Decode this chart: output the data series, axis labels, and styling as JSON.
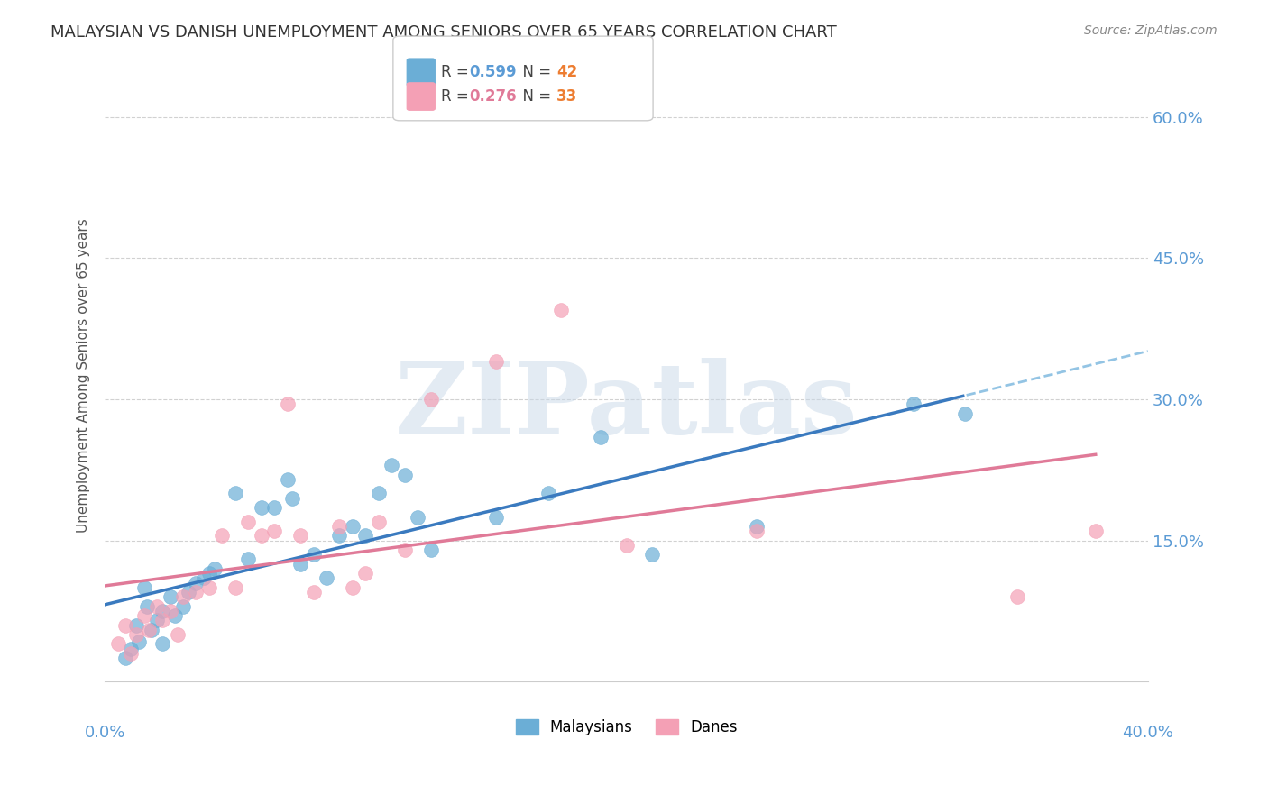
{
  "title": "MALAYSIAN VS DANISH UNEMPLOYMENT AMONG SENIORS OVER 65 YEARS CORRELATION CHART",
  "source": "Source: ZipAtlas.com",
  "ylabel": "Unemployment Among Seniors over 65 years",
  "yticks": [
    0.0,
    0.15,
    0.3,
    0.45,
    0.6
  ],
  "ytick_labels": [
    "",
    "15.0%",
    "30.0%",
    "45.0%",
    "60.0%"
  ],
  "xticks": [
    0.0,
    0.1,
    0.2,
    0.3,
    0.4
  ],
  "xlim": [
    0.0,
    0.4
  ],
  "ylim": [
    0.0,
    0.65
  ],
  "watermark_text": "ZIPatlas",
  "malaysian_color": "#6baed6",
  "danish_color": "#f4a0b5",
  "blue_line_color": "#3a7abf",
  "pink_line_color": "#e07a98",
  "blue_dash_color": "#93c4e4",
  "malaysian_x": [
    0.008,
    0.01,
    0.012,
    0.013,
    0.015,
    0.016,
    0.018,
    0.02,
    0.022,
    0.022,
    0.025,
    0.027,
    0.03,
    0.032,
    0.035,
    0.038,
    0.04,
    0.042,
    0.05,
    0.055,
    0.06,
    0.065,
    0.07,
    0.072,
    0.075,
    0.08,
    0.085,
    0.09,
    0.095,
    0.1,
    0.105,
    0.11,
    0.115,
    0.12,
    0.125,
    0.15,
    0.17,
    0.19,
    0.21,
    0.25,
    0.31,
    0.33
  ],
  "malaysian_y": [
    0.025,
    0.035,
    0.06,
    0.042,
    0.1,
    0.08,
    0.055,
    0.065,
    0.04,
    0.075,
    0.09,
    0.07,
    0.08,
    0.095,
    0.105,
    0.11,
    0.115,
    0.12,
    0.2,
    0.13,
    0.185,
    0.185,
    0.215,
    0.195,
    0.125,
    0.135,
    0.11,
    0.155,
    0.165,
    0.155,
    0.2,
    0.23,
    0.22,
    0.175,
    0.14,
    0.175,
    0.2,
    0.26,
    0.135,
    0.165,
    0.295,
    0.285
  ],
  "danish_x": [
    0.005,
    0.008,
    0.01,
    0.012,
    0.015,
    0.017,
    0.02,
    0.022,
    0.025,
    0.028,
    0.03,
    0.035,
    0.04,
    0.045,
    0.05,
    0.055,
    0.06,
    0.065,
    0.07,
    0.075,
    0.08,
    0.09,
    0.095,
    0.1,
    0.105,
    0.115,
    0.125,
    0.15,
    0.175,
    0.2,
    0.25,
    0.35,
    0.38
  ],
  "danish_y": [
    0.04,
    0.06,
    0.03,
    0.05,
    0.07,
    0.055,
    0.08,
    0.065,
    0.075,
    0.05,
    0.09,
    0.095,
    0.1,
    0.155,
    0.1,
    0.17,
    0.155,
    0.16,
    0.295,
    0.155,
    0.095,
    0.165,
    0.1,
    0.115,
    0.17,
    0.14,
    0.3,
    0.34,
    0.395,
    0.145,
    0.16,
    0.09,
    0.16
  ],
  "background_color": "#ffffff",
  "grid_color": "#cccccc",
  "axis_label_color": "#5b9bd5",
  "legend_R_blue": "#5b9bd5",
  "legend_N_orange": "#ed7d31",
  "legend_R_pink": "#e07a98"
}
